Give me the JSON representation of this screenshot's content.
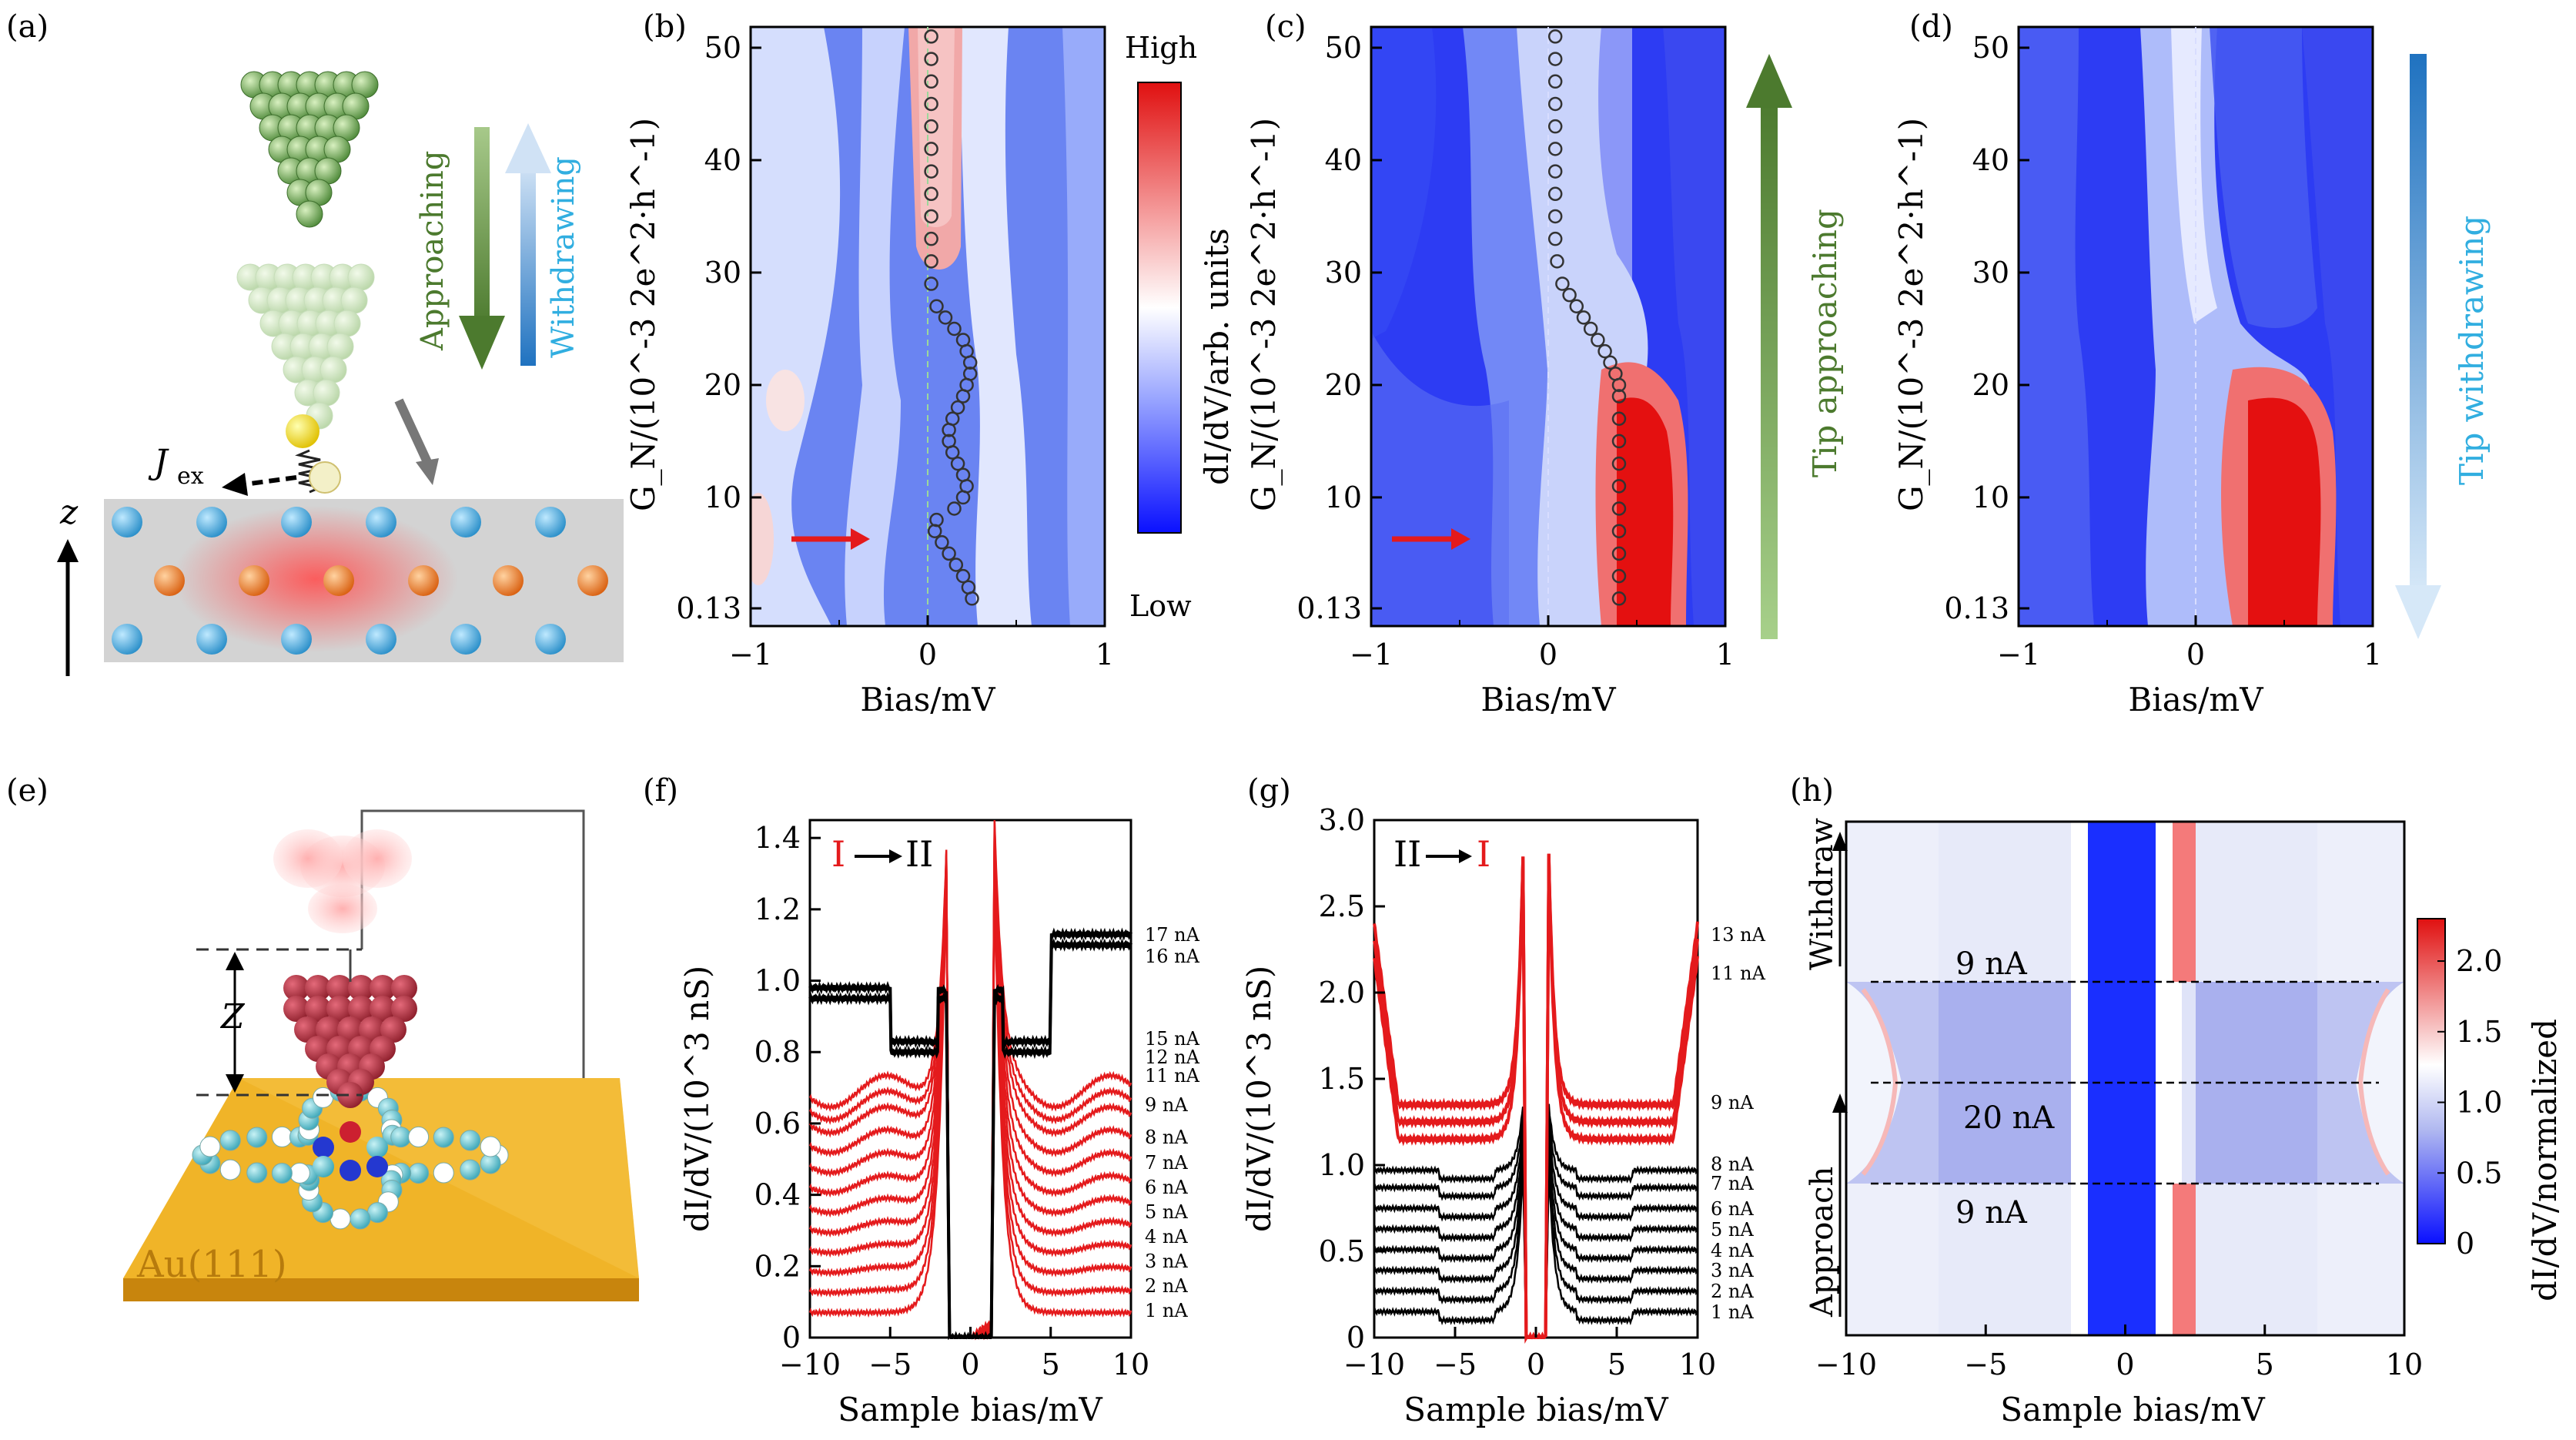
{
  "panel_labels": [
    "(a)",
    "(b)",
    "(c)",
    "(d)",
    "(e)",
    "(f)",
    "(g)",
    "(h)"
  ],
  "panel_a": {
    "approaching": "Approaching",
    "withdrawing": "Withdrawing",
    "jex": "J",
    "jex_sub": "ex",
    "z": "z"
  },
  "panel_e": {
    "substrate": "Au(111)",
    "z": "Z"
  },
  "colorbar_bcd": {
    "high": "High",
    "low": "Low",
    "label": "dI/dV/arb. units"
  },
  "side_labels": {
    "tip_approaching": "Tip approaching",
    "tip_withdrawing": "Tip withdrawing"
  },
  "colors": {
    "red": "#e41a1c",
    "blue": "#1a2fff",
    "green_dark": "#4c7a2e",
    "cyan_text": "#31aee0"
  },
  "chart_data": [
    {
      "id": "b",
      "type": "heatmap",
      "xlabel": "Bias/mV",
      "ylabel": "G_N/(10^-3 2e^2·h^-1)",
      "xlim": [
        -1,
        1
      ],
      "ylim": [
        0.13,
        52
      ],
      "xticks": [
        "−1",
        "0",
        "1"
      ],
      "yticks": [
        "0.13",
        "10",
        "20",
        "30",
        "40",
        "50"
      ],
      "peak_markers": [
        [
          0.02,
          51
        ],
        [
          0.02,
          49
        ],
        [
          0.02,
          47
        ],
        [
          0.02,
          45
        ],
        [
          0.02,
          43
        ],
        [
          0.02,
          41
        ],
        [
          0.02,
          39
        ],
        [
          0.02,
          37
        ],
        [
          0.02,
          35
        ],
        [
          0.02,
          33
        ],
        [
          0.02,
          31
        ],
        [
          0.02,
          29
        ],
        [
          0.05,
          27
        ],
        [
          0.1,
          26
        ],
        [
          0.15,
          25
        ],
        [
          0.2,
          24
        ],
        [
          0.22,
          23
        ],
        [
          0.24,
          22
        ],
        [
          0.24,
          21
        ],
        [
          0.22,
          20
        ],
        [
          0.2,
          19
        ],
        [
          0.17,
          18
        ],
        [
          0.14,
          17
        ],
        [
          0.12,
          16
        ],
        [
          0.12,
          15
        ],
        [
          0.14,
          14
        ],
        [
          0.17,
          13
        ],
        [
          0.2,
          12
        ],
        [
          0.22,
          11
        ],
        [
          0.2,
          10
        ],
        [
          0.15,
          9
        ],
        [
          0.05,
          8
        ],
        [
          0.04,
          7
        ],
        [
          0.08,
          6
        ],
        [
          0.12,
          5
        ],
        [
          0.16,
          4
        ],
        [
          0.2,
          3
        ],
        [
          0.23,
          2
        ],
        [
          0.25,
          1
        ]
      ]
    },
    {
      "id": "c",
      "type": "heatmap",
      "xlabel": "Bias/mV",
      "ylabel": "G_N/(10^-3 2e^2·h^-1)",
      "xlim": [
        -1,
        1
      ],
      "ylim": [
        0.13,
        52
      ],
      "xticks": [
        "−1",
        "0",
        "1"
      ],
      "yticks": [
        "0.13",
        "10",
        "20",
        "30",
        "40",
        "50"
      ],
      "peak_markers": [
        [
          0.04,
          51
        ],
        [
          0.04,
          49
        ],
        [
          0.04,
          47
        ],
        [
          0.04,
          45
        ],
        [
          0.04,
          43
        ],
        [
          0.04,
          41
        ],
        [
          0.04,
          39
        ],
        [
          0.04,
          37
        ],
        [
          0.04,
          35
        ],
        [
          0.04,
          33
        ],
        [
          0.05,
          31
        ],
        [
          0.08,
          29
        ],
        [
          0.12,
          28
        ],
        [
          0.16,
          27
        ],
        [
          0.2,
          26
        ],
        [
          0.24,
          25
        ],
        [
          0.28,
          24
        ],
        [
          0.32,
          23
        ],
        [
          0.35,
          22
        ],
        [
          0.38,
          21
        ],
        [
          0.4,
          20
        ],
        [
          0.4,
          19
        ],
        [
          0.4,
          17
        ],
        [
          0.4,
          15
        ],
        [
          0.4,
          13
        ],
        [
          0.4,
          11
        ],
        [
          0.4,
          9
        ],
        [
          0.4,
          7
        ],
        [
          0.4,
          5
        ],
        [
          0.4,
          3
        ],
        [
          0.4,
          1
        ]
      ]
    },
    {
      "id": "d",
      "type": "heatmap",
      "xlabel": "Bias/mV",
      "ylabel": "G_N/(10^-3 2e^2·h^-1)",
      "xlim": [
        -1,
        1
      ],
      "ylim": [
        0.13,
        52
      ],
      "xticks": [
        "−1",
        "0",
        "1"
      ],
      "yticks": [
        "0.13",
        "10",
        "20",
        "30",
        "40",
        "50"
      ]
    },
    {
      "id": "f",
      "type": "line",
      "title": "I → II",
      "xlabel": "Sample bias/mV",
      "ylabel": "dI/dV/(10^3 nS)",
      "xlim": [
        -10,
        10
      ],
      "ylim": [
        0,
        1.45
      ],
      "xticks": [
        "−10",
        "−5",
        "0",
        "5",
        "10"
      ],
      "yticks": [
        "0",
        "0.2",
        "0.4",
        "0.6",
        "0.8",
        "1.0",
        "1.2",
        "1.4"
      ],
      "series_labels": [
        "1 nA",
        "2 nA",
        "3 nA",
        "4 nA",
        "5 nA",
        "6 nA",
        "7 nA",
        "8 nA",
        "9 nA",
        "11 nA",
        "12 nA",
        "15 nA",
        "16 nA",
        "17 nA"
      ],
      "red_offsets": [
        0.07,
        0.13,
        0.19,
        0.25,
        0.31,
        0.37,
        0.43,
        0.49,
        0.55,
        0.61,
        0.65,
        0.69
      ],
      "black_offsets": [
        0.95,
        0.98
      ]
    },
    {
      "id": "g",
      "type": "line",
      "title": "II → I",
      "xlabel": "Sample bias/mV",
      "ylabel": "dI/dV/(10^3 nS)",
      "xlim": [
        -10,
        10
      ],
      "ylim": [
        0,
        3.0
      ],
      "xticks": [
        "−10",
        "−5",
        "0",
        "5",
        "10"
      ],
      "yticks": [
        "0",
        "0.5",
        "1.0",
        "1.5",
        "2.0",
        "2.5",
        "3.0"
      ],
      "series_labels": [
        "1 nA",
        "2 nA",
        "3 nA",
        "4 nA",
        "5 nA",
        "6 nA",
        "7 nA",
        "8 nA",
        "9 nA",
        "11 nA",
        "13 nA"
      ],
      "black_offsets": [
        0.15,
        0.27,
        0.39,
        0.51,
        0.63,
        0.75,
        0.87,
        0.97
      ],
      "red_offsets": [
        1.15,
        1.25,
        1.35
      ]
    },
    {
      "id": "h",
      "type": "heatmap",
      "xlabel": "Sample bias/mV",
      "xlim": [
        -10,
        10
      ],
      "xticks": [
        "−10",
        "−5",
        "0",
        "5",
        "10"
      ],
      "side_labels": [
        "Withdraw",
        "Approach"
      ],
      "region_labels": [
        "9 nA",
        "20 nA",
        "9 nA"
      ],
      "colorbar": {
        "label": "dI/dV/normalized",
        "ticks": [
          "0",
          "0.5",
          "1.0",
          "1.5",
          "2.0"
        ],
        "range": [
          0,
          2.3
        ]
      }
    }
  ]
}
